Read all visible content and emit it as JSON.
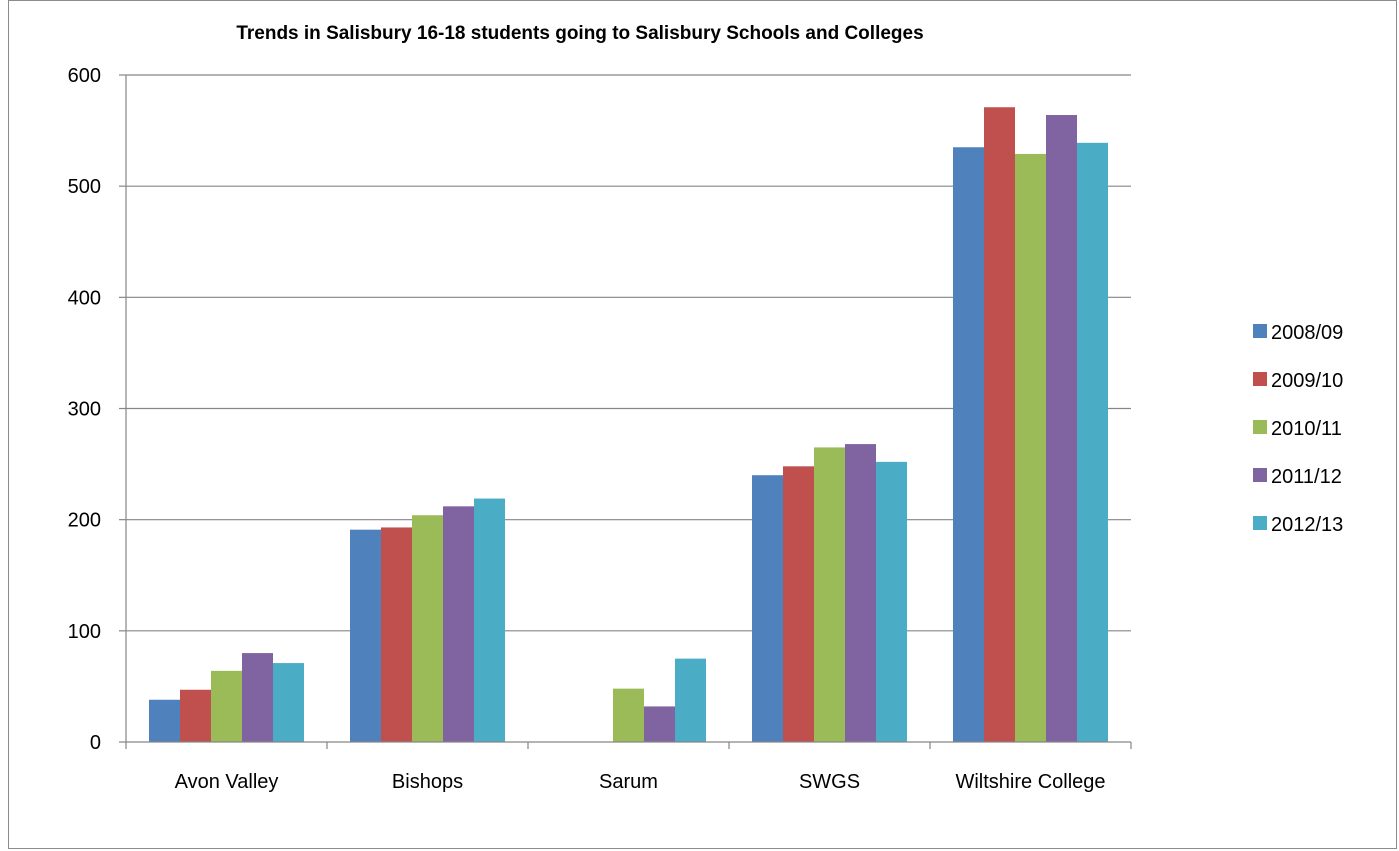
{
  "chart_data": {
    "type": "bar",
    "title": "Trends in Salisbury 16-18 students going to Salisbury Schools and Colleges",
    "xlabel": "",
    "ylabel": "",
    "ylim": [
      0,
      600
    ],
    "yticks": [
      "0",
      "100",
      "200",
      "300",
      "400",
      "500",
      "600"
    ],
    "ytick_values": [
      0,
      100,
      200,
      300,
      400,
      500,
      600
    ],
    "grid": true,
    "legend_position": "right",
    "categories": [
      "Avon Valley",
      "Bishops",
      "Sarum",
      "SWGS",
      "Wiltshire College"
    ],
    "series": [
      {
        "name": "2008/09",
        "color": "#4f81bd",
        "values": [
          38,
          191,
          0,
          240,
          535
        ]
      },
      {
        "name": "2009/10",
        "color": "#c0504d",
        "values": [
          47,
          193,
          0,
          248,
          571
        ]
      },
      {
        "name": "2010/11",
        "color": "#9bbb59",
        "values": [
          64,
          204,
          48,
          265,
          529
        ]
      },
      {
        "name": "2011/12",
        "color": "#8064a2",
        "values": [
          80,
          212,
          32,
          268,
          564
        ]
      },
      {
        "name": "2012/13",
        "color": "#4bacc6",
        "values": [
          71,
          219,
          75,
          252,
          539
        ]
      }
    ]
  }
}
